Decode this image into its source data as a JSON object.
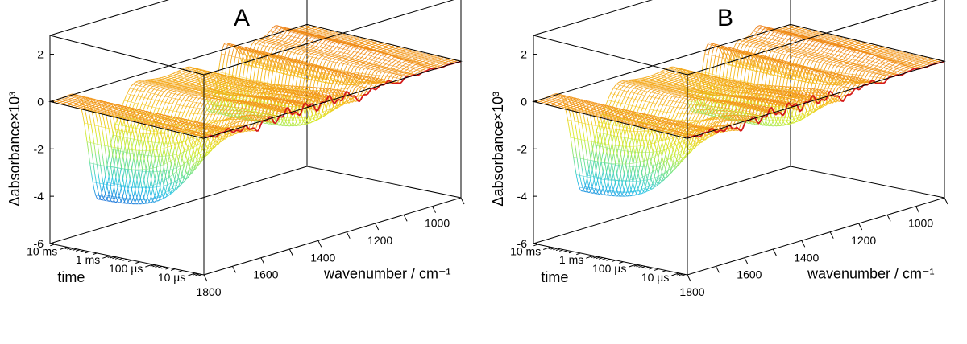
{
  "chart_data": [
    {
      "type": "surface",
      "title": "A",
      "xlabel": "wavenumber / cm⁻¹",
      "ylabel": "time",
      "zlabel": "Δabsorbance×10³",
      "xticks": [
        "1800",
        "1600",
        "1400",
        "1200",
        "1000"
      ],
      "xlim": [
        1800,
        900
      ],
      "yticks": [
        "10 µs",
        "100 µs",
        "1 ms",
        "10 ms"
      ],
      "ylim_log_seconds": [
        -5.2,
        -1.6
      ],
      "zticks": [
        "-6",
        "-4",
        "-2",
        "0",
        "2"
      ],
      "zlim": [
        -6,
        2.8
      ],
      "colormap": [
        "#0b1aa8",
        "#1e63d8",
        "#2ac4e6",
        "#6fe38a",
        "#d8ec2a",
        "#f7c21b",
        "#f08a1a",
        "#d62418",
        "#a01010"
      ],
      "features": [
        {
          "label": "positive band",
          "center_wavenumber": 1660,
          "max_value": 2.2
        },
        {
          "label": "negative band",
          "center_wavenumber": 1645,
          "min_value": -5.9
        },
        {
          "label": "negative band",
          "center_wavenumber": 1240,
          "min_value": -2.6
        }
      ]
    },
    {
      "type": "surface",
      "title": "B",
      "xlabel": "wavenumber / cm⁻¹",
      "ylabel": "time",
      "zlabel": "Δabsorbance×10³",
      "xticks": [
        "1800",
        "1600",
        "1400",
        "1200",
        "1000"
      ],
      "xlim": [
        1800,
        900
      ],
      "yticks": [
        "10 µs",
        "100 µs",
        "1 ms",
        "10 ms"
      ],
      "ylim_log_seconds": [
        -5.2,
        -1.6
      ],
      "zticks": [
        "-6",
        "-4",
        "-2",
        "0",
        "2"
      ],
      "zlim": [
        -6,
        2.8
      ],
      "colormap": [
        "#0b1aa8",
        "#1e63d8",
        "#2ac4e6",
        "#6fe38a",
        "#d8ec2a",
        "#f7c21b",
        "#f08a1a",
        "#d62418",
        "#a01010"
      ],
      "features": [
        {
          "label": "positive band",
          "center_wavenumber": 1660,
          "max_value": 2.1
        },
        {
          "label": "negative band",
          "center_wavenumber": 1645,
          "min_value": -5.5
        },
        {
          "label": "negative band",
          "center_wavenumber": 1240,
          "min_value": -2.6
        }
      ]
    }
  ]
}
